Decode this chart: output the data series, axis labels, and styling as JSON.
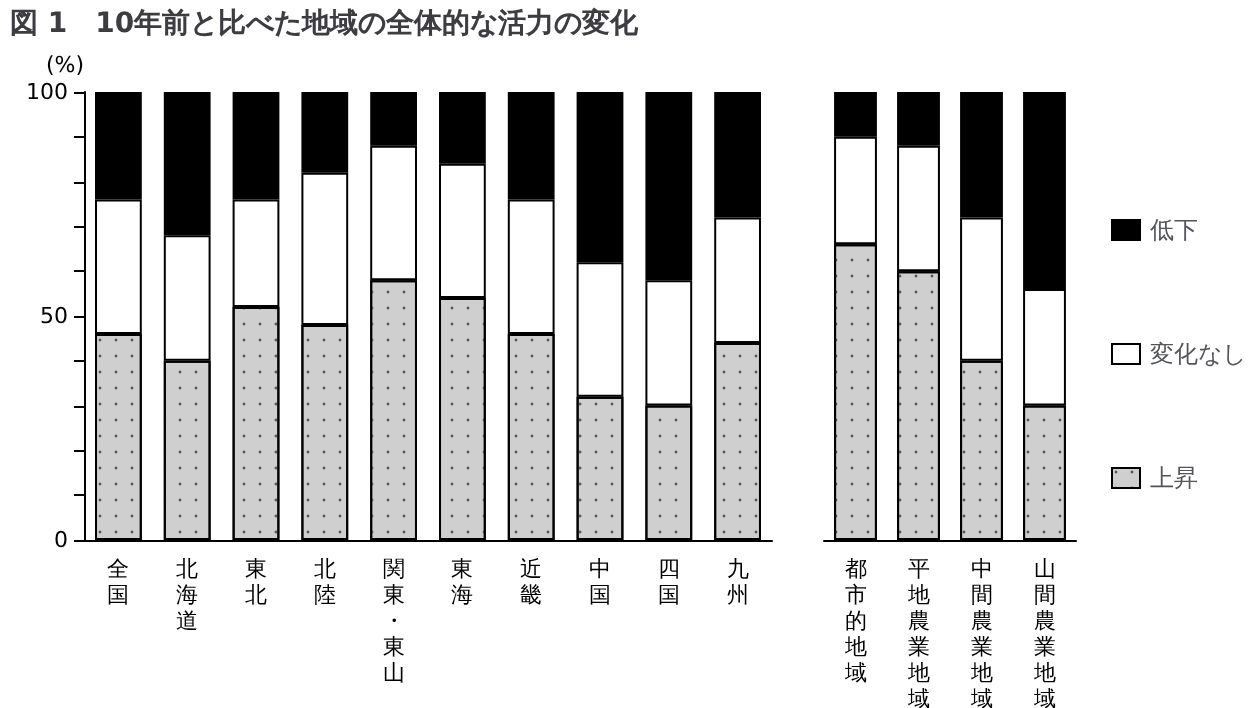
{
  "chart_data": [
    {
      "type": "bar",
      "title": "図 1　10年前と比べた地域の全体的な活力の変化",
      "ylabel": "(%)",
      "stacked": true,
      "categories": [
        "全国",
        "北海道",
        "東北",
        "北陸",
        "関東・東山",
        "東海",
        "近畿",
        "中国",
        "四国",
        "九州"
      ],
      "series": [
        {
          "color": "#cfcfcf",
          "values": [
            46,
            40,
            52,
            48,
            58,
            54,
            46,
            32,
            30,
            44
          ]
        },
        {
          "color": "#ffffff",
          "values": [
            30,
            28,
            24,
            34,
            30,
            30,
            30,
            30,
            28,
            28
          ]
        },
        {
          "color": "#000000",
          "values": [
            24,
            32,
            24,
            18,
            12,
            16,
            24,
            38,
            42,
            28
          ]
        }
      ],
      "ylim": [
        0,
        100
      ],
      "yticks": [
        0,
        {
          "value": 10,
          "label": null
        },
        {
          "value": 20,
          "label": null
        },
        {
          "value": 30,
          "label": null
        },
        {
          "value": 40,
          "label": null
        },
        50,
        {
          "value": 60,
          "label": null
        },
        {
          "value": 70,
          "label": null
        },
        {
          "value": 80,
          "label": null
        },
        {
          "value": 90,
          "label": null
        },
        100
      ]
    },
    {
      "type": "bar",
      "stacked": true,
      "legend": "right",
      "tick_labels": "x",
      "categories": [
        "都市的地域",
        "平地農業地域",
        "中間農業地域",
        "山間農業地域"
      ],
      "series": [
        {
          "name": "上昇",
          "color": "#cfcfcf",
          "values": [
            66,
            60,
            40,
            30
          ]
        },
        {
          "name": "変化なし",
          "color": "#ffffff",
          "values": [
            24,
            28,
            32,
            26
          ]
        },
        {
          "name": "低下",
          "color": "#000000",
          "values": [
            10,
            12,
            28,
            44
          ]
        }
      ],
      "ylim": [
        0,
        100
      ]
    }
  ]
}
